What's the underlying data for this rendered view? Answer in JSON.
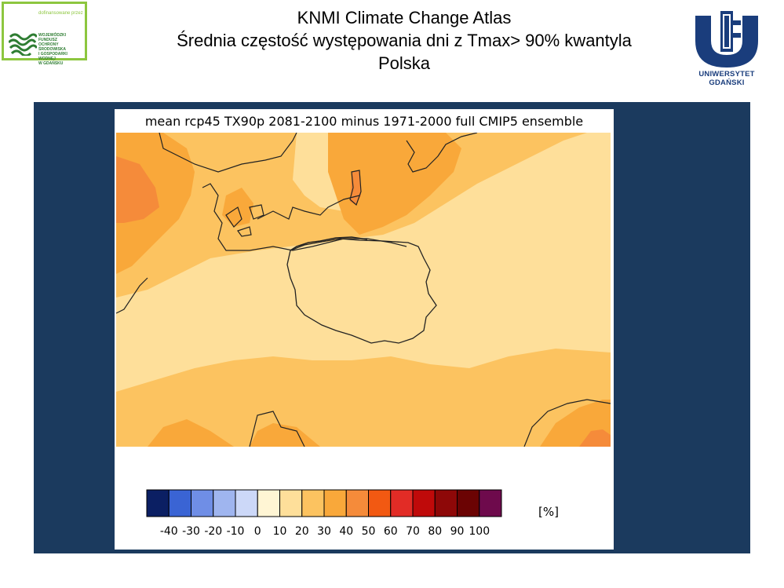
{
  "header": {
    "title_line1": "KNMI Climate Change Atlas",
    "title_line2": "Średnia częstość występowania dni z Tmax> 90% kwantyla",
    "title_line3": "Polska"
  },
  "logo_left": {
    "small_text": "dofinansowane przez",
    "org_name": "WOJEWÓDZKI FUNDUSZ\nOCHRONY ŚRODOWISKA\nI GOSPODARKI WODNEJ\nW GDAŃSKU",
    "accent_color": "#8dc63f"
  },
  "logo_right": {
    "name": "UNIWERSYTET GDAŃSKI",
    "color": "#1a3d7c"
  },
  "figure": {
    "title": "mean rcp45 TX90p 2081-2100 minus 1971-2000  full CMIP5 ensemble",
    "unit_label": "[%]",
    "colorbar": {
      "colors": [
        "#0b1f63",
        "#3a64d4",
        "#6f8ee6",
        "#9fb5ef",
        "#ccd8f8",
        "#fff5d4",
        "#fedf9a",
        "#fcc360",
        "#f9a83a",
        "#f58b3a",
        "#f25912",
        "#e22c26",
        "#bf0a0a",
        "#8e0808",
        "#6b0303",
        "#6e0a4c"
      ],
      "ticks": [
        "-40",
        "-30",
        "-20",
        "-10",
        "0",
        "10",
        "20",
        "30",
        "40",
        "50",
        "60",
        "70",
        "80",
        "90",
        "100"
      ]
    },
    "map_colors": {
      "c10_20": "#fedf9a",
      "c20_30": "#fcc360",
      "c30_40": "#f9a83a",
      "c40_50": "#f58b3a",
      "border": "#222222"
    }
  }
}
